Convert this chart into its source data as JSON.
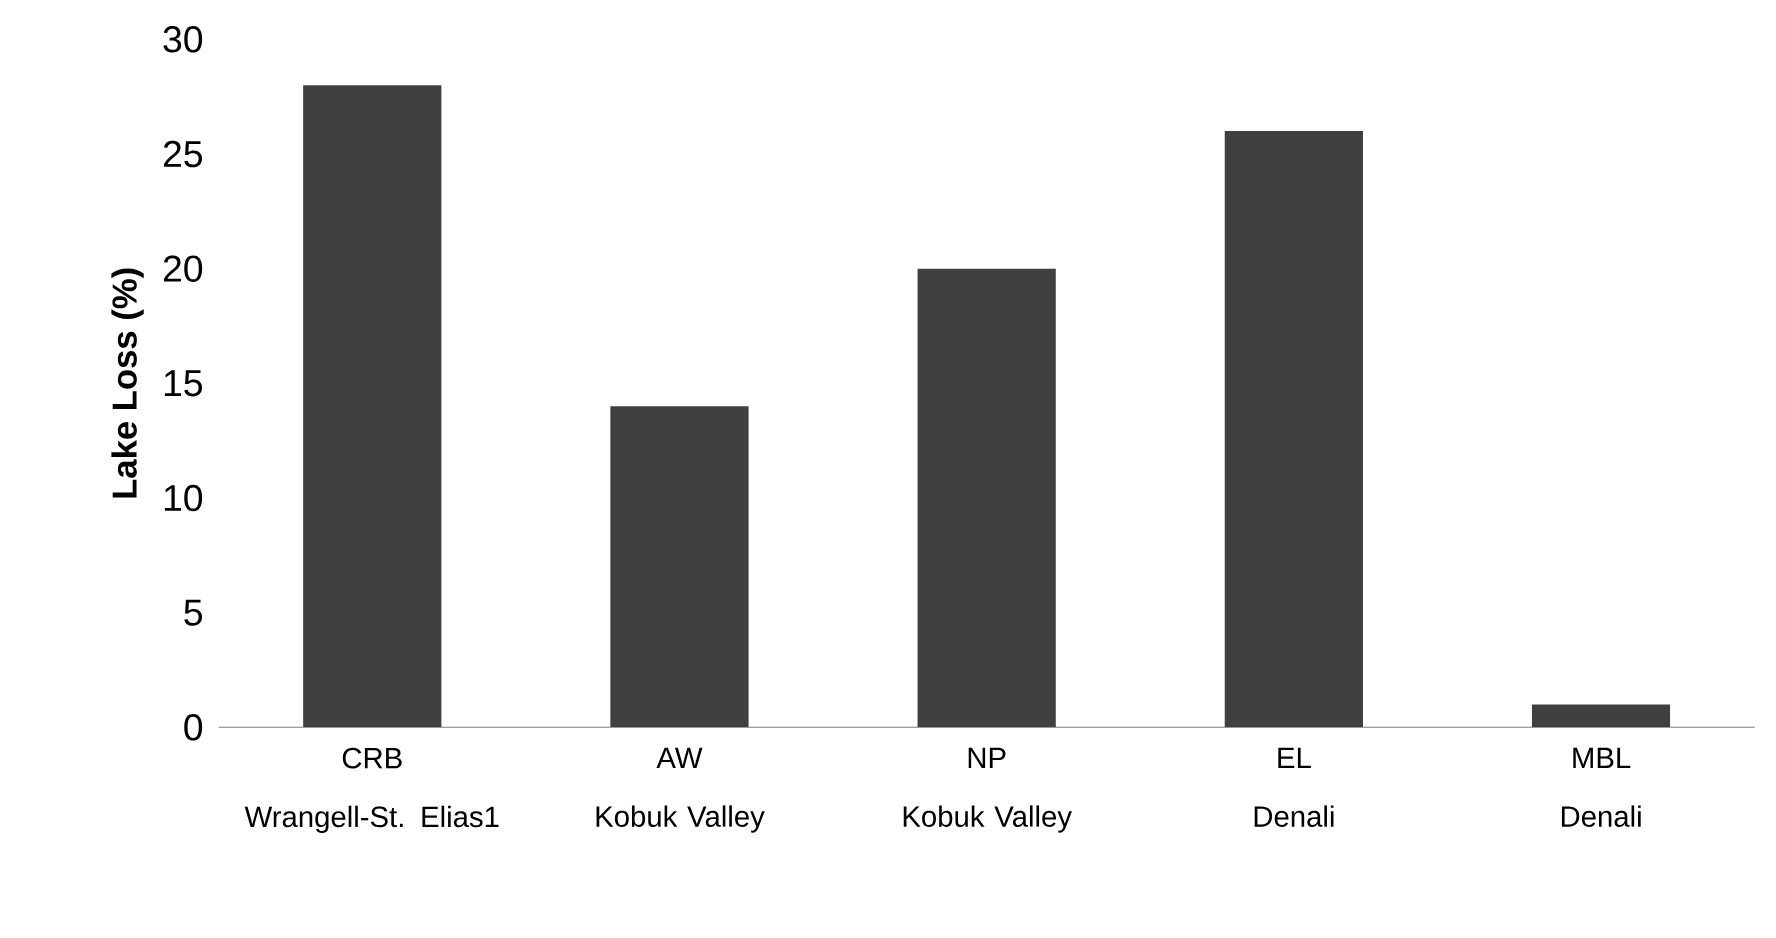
{
  "chart_data": {
    "type": "bar",
    "ylabel": "**Lake Loss (%)**",
    "categories": [
      "CRB\nWrangell-St. Elias1",
      "AW\nKobuk Valley",
      "NP\nKobuk Valley",
      "EL\nDenali",
      "MBL\nDenali"
    ],
    "values": [
      28,
      14,
      20,
      26,
      1
    ],
    "color": "#404040",
    "ylim": [
      0,
      30
    ],
    "yticks": [
      0,
      5,
      10,
      15,
      20,
      25,
      30
    ],
    "grid": false
  }
}
